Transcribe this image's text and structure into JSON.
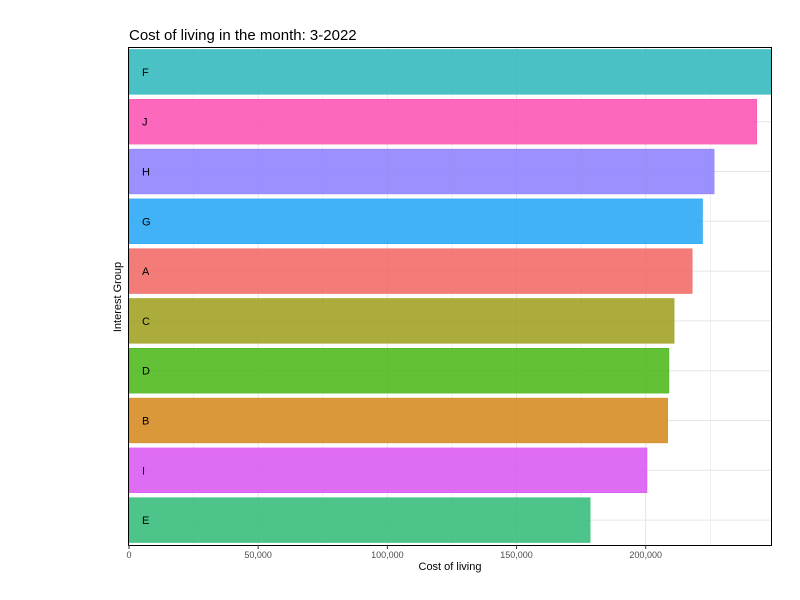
{
  "chart_data": {
    "type": "bar",
    "orientation": "horizontal",
    "title": "Cost of living in the month: 3-2022",
    "xlabel": "Cost of living",
    "ylabel": "Interest Group",
    "xlim": [
      0,
      248500
    ],
    "xticks": [
      0,
      50000,
      100000,
      150000,
      200000
    ],
    "xtick_labels": [
      "0",
      "50,000",
      "100,000",
      "150,000",
      "200,000"
    ],
    "grid": true,
    "legend": "none",
    "categories": [
      "F",
      "J",
      "H",
      "G",
      "A",
      "C",
      "D",
      "B",
      "I",
      "E"
    ],
    "values": [
      248500,
      243000,
      226500,
      222000,
      218000,
      211000,
      209000,
      208500,
      200500,
      178500
    ],
    "colors": [
      "#2ab7bb",
      "#fb4fb0",
      "#8a7dfd",
      "#21a4f4",
      "#f16460",
      "#9d9d1b",
      "#46b613",
      "#d38619",
      "#d954f2",
      "#2ebb76"
    ],
    "bar_label_color": "#000000"
  }
}
